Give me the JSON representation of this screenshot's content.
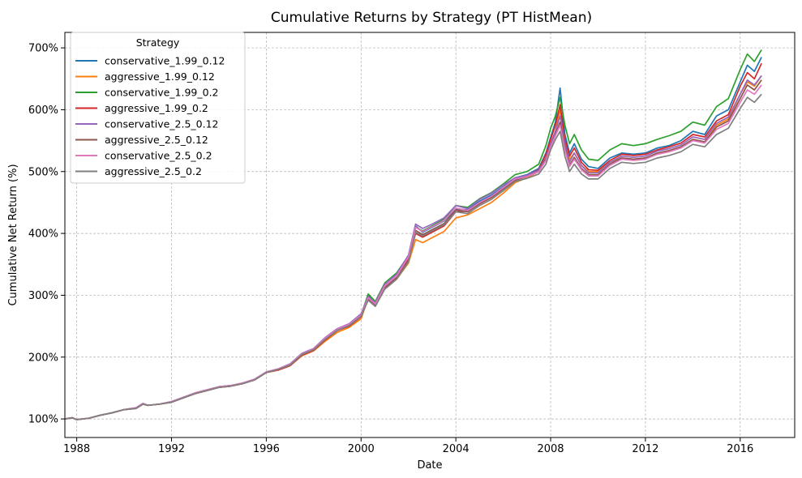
{
  "chart_data": {
    "type": "line",
    "title": "Cumulative Returns by Strategy (PT HistMean)",
    "xlabel": "Date",
    "ylabel": "Cumulative Net Return (%)",
    "xlim": [
      1987.5,
      2018.3
    ],
    "ylim": [
      70,
      725
    ],
    "x_ticks": [
      1988,
      1992,
      1996,
      2000,
      2004,
      2008,
      2012,
      2016
    ],
    "x_tick_labels": [
      "1988",
      "1992",
      "1996",
      "2000",
      "2004",
      "2008",
      "2012",
      "2016"
    ],
    "y_ticks": [
      100,
      200,
      300,
      400,
      500,
      600,
      700
    ],
    "y_tick_labels": [
      "100%",
      "200%",
      "300%",
      "400%",
      "500%",
      "600%",
      "700%"
    ],
    "grid": true,
    "legend": {
      "title": "Strategy",
      "position": "upper-left"
    },
    "x": [
      1987.5,
      1987.8,
      1988.0,
      1988.5,
      1989.0,
      1989.5,
      1990.0,
      1990.5,
      1990.8,
      1991.0,
      1991.5,
      1992.0,
      1992.5,
      1993.0,
      1993.5,
      1994.0,
      1994.5,
      1995.0,
      1995.5,
      1996.0,
      1996.5,
      1997.0,
      1997.5,
      1998.0,
      1998.5,
      1999.0,
      1999.5,
      2000.0,
      2000.3,
      2000.6,
      2001.0,
      2001.5,
      2002.0,
      2002.3,
      2002.6,
      2003.0,
      2003.5,
      2004.0,
      2004.5,
      2005.0,
      2005.5,
      2006.0,
      2006.5,
      2007.0,
      2007.5,
      2007.8,
      2008.0,
      2008.2,
      2008.4,
      2008.6,
      2008.8,
      2009.0,
      2009.3,
      2009.6,
      2010.0,
      2010.5,
      2011.0,
      2011.5,
      2012.0,
      2012.5,
      2013.0,
      2013.5,
      2014.0,
      2014.5,
      2015.0,
      2015.5,
      2016.0,
      2016.3,
      2016.6,
      2016.9
    ],
    "series": [
      {
        "name": "conservative_1.99_0.12",
        "color": "#1f77b4",
        "values": [
          100,
          102,
          99,
          101,
          106,
          110,
          115,
          118,
          125,
          122,
          124,
          128,
          135,
          142,
          147,
          152,
          154,
          158,
          164,
          176,
          180,
          188,
          205,
          213,
          230,
          245,
          252,
          268,
          300,
          288,
          318,
          335,
          362,
          412,
          402,
          410,
          420,
          440,
          438,
          452,
          462,
          475,
          490,
          495,
          505,
          530,
          555,
          580,
          635,
          560,
          530,
          545,
          520,
          508,
          505,
          522,
          530,
          528,
          530,
          538,
          542,
          550,
          565,
          560,
          590,
          600,
          645,
          672,
          662,
          685
        ]
      },
      {
        "name": "aggressive_1.99_0.12",
        "color": "#ff7f0e",
        "values": [
          100,
          102,
          99,
          101,
          106,
          110,
          115,
          117,
          124,
          122,
          124,
          127,
          134,
          141,
          146,
          151,
          153,
          157,
          163,
          175,
          179,
          186,
          202,
          210,
          226,
          240,
          248,
          262,
          295,
          284,
          310,
          326,
          352,
          390,
          385,
          393,
          403,
          425,
          430,
          440,
          450,
          465,
          482,
          490,
          500,
          522,
          545,
          565,
          600,
          545,
          520,
          530,
          510,
          500,
          500,
          515,
          522,
          520,
          522,
          528,
          532,
          540,
          552,
          548,
          575,
          585,
          625,
          645,
          638,
          655
        ]
      },
      {
        "name": "conservative_1.99_0.2",
        "color": "#2ca02c",
        "values": [
          100,
          102,
          99,
          101,
          106,
          110,
          115,
          118,
          125,
          122,
          124,
          128,
          135,
          142,
          147,
          152,
          154,
          158,
          164,
          176,
          180,
          188,
          205,
          213,
          230,
          245,
          252,
          268,
          302,
          290,
          320,
          336,
          364,
          410,
          404,
          412,
          423,
          445,
          442,
          456,
          466,
          480,
          495,
          500,
          512,
          542,
          570,
          590,
          620,
          575,
          545,
          560,
          535,
          520,
          518,
          535,
          545,
          542,
          545,
          552,
          558,
          565,
          580,
          575,
          605,
          618,
          665,
          690,
          678,
          697
        ]
      },
      {
        "name": "aggressive_1.99_0.2",
        "color": "#d62728",
        "values": [
          100,
          102,
          99,
          101,
          106,
          110,
          115,
          117,
          124,
          122,
          124,
          127,
          134,
          141,
          146,
          151,
          153,
          157,
          163,
          175,
          179,
          186,
          203,
          211,
          228,
          243,
          250,
          265,
          298,
          287,
          314,
          330,
          358,
          400,
          394,
          402,
          412,
          435,
          436,
          448,
          458,
          472,
          488,
          494,
          503,
          528,
          552,
          575,
          608,
          552,
          525,
          538,
          515,
          503,
          502,
          518,
          528,
          526,
          528,
          535,
          540,
          546,
          560,
          556,
          582,
          592,
          638,
          660,
          650,
          675
        ]
      },
      {
        "name": "conservative_2.5_0.12",
        "color": "#9467bd",
        "values": [
          100,
          102,
          99,
          101,
          106,
          110,
          115,
          118,
          125,
          122,
          124,
          128,
          135,
          142,
          147,
          152,
          154,
          158,
          164,
          176,
          181,
          189,
          206,
          214,
          232,
          246,
          254,
          270,
          298,
          288,
          318,
          334,
          365,
          415,
          408,
          415,
          425,
          445,
          440,
          455,
          465,
          478,
          490,
          494,
          502,
          522,
          545,
          565,
          590,
          545,
          515,
          530,
          510,
          498,
          498,
          515,
          525,
          523,
          525,
          533,
          537,
          543,
          556,
          552,
          578,
          588,
          625,
          648,
          640,
          655
        ]
      },
      {
        "name": "aggressive_2.5_0.12",
        "color": "#8c564b",
        "values": [
          100,
          102,
          99,
          101,
          106,
          110,
          115,
          117,
          124,
          122,
          124,
          127,
          134,
          141,
          146,
          151,
          153,
          157,
          163,
          175,
          180,
          187,
          204,
          212,
          229,
          243,
          251,
          266,
          294,
          284,
          312,
          328,
          356,
          405,
          398,
          406,
          416,
          438,
          435,
          448,
          458,
          472,
          486,
          492,
          500,
          520,
          540,
          560,
          580,
          538,
          510,
          523,
          505,
          495,
          495,
          512,
          522,
          520,
          522,
          530,
          534,
          540,
          552,
          548,
          572,
          582,
          618,
          640,
          632,
          648
        ]
      },
      {
        "name": "conservative_2.5_0.2",
        "color": "#e377c2",
        "values": [
          100,
          102,
          99,
          101,
          106,
          110,
          115,
          118,
          125,
          122,
          124,
          128,
          135,
          142,
          147,
          152,
          154,
          158,
          164,
          176,
          181,
          188,
          205,
          213,
          231,
          245,
          253,
          268,
          296,
          286,
          315,
          331,
          362,
          410,
          403,
          411,
          421,
          441,
          437,
          450,
          460,
          474,
          488,
          492,
          500,
          518,
          540,
          558,
          575,
          535,
          508,
          520,
          503,
          493,
          493,
          510,
          520,
          518,
          520,
          528,
          532,
          538,
          550,
          546,
          568,
          578,
          612,
          632,
          625,
          640
        ]
      },
      {
        "name": "aggressive_2.5_0.2",
        "color": "#7f7f7f",
        "values": [
          100,
          102,
          99,
          101,
          106,
          110,
          115,
          117,
          124,
          122,
          124,
          127,
          134,
          141,
          146,
          151,
          153,
          157,
          163,
          175,
          180,
          187,
          204,
          212,
          229,
          243,
          251,
          266,
          292,
          282,
          310,
          326,
          354,
          402,
          396,
          404,
          414,
          435,
          432,
          445,
          455,
          469,
          484,
          489,
          496,
          512,
          535,
          552,
          565,
          525,
          500,
          512,
          496,
          488,
          488,
          505,
          515,
          513,
          515,
          522,
          526,
          532,
          544,
          540,
          560,
          570,
          602,
          620,
          612,
          625
        ]
      }
    ]
  }
}
